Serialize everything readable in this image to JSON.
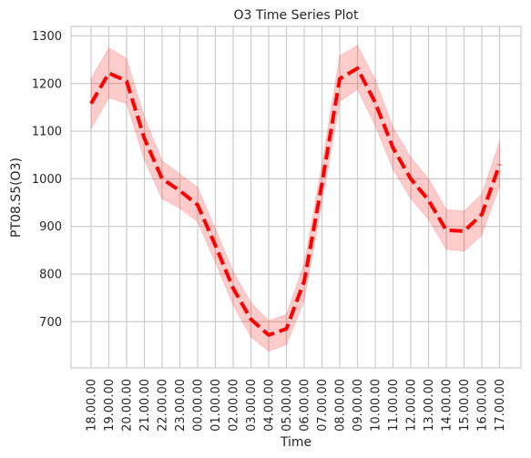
{
  "chart_data": {
    "type": "line",
    "title": "O3 Time Series Plot",
    "xlabel": "Time",
    "ylabel": "PT08.S5(O3)",
    "categories": [
      "18.00.00",
      "19.00.00",
      "20.00.00",
      "21.00.00",
      "22.00.00",
      "23.00.00",
      "00.00.00",
      "01.00.00",
      "02.00.00",
      "03.00.00",
      "04.00.00",
      "05.00.00",
      "06.00.00",
      "07.00.00",
      "08.00.00",
      "09.00.00",
      "10.00.00",
      "11.00.00",
      "12.00.00",
      "13.00.00",
      "14.00.00",
      "15.00.00",
      "16.00.00",
      "17.00.00"
    ],
    "series": [
      {
        "values": [
          1158,
          1222,
          1205,
          1085,
          1000,
          975,
          945,
          860,
          770,
          705,
          672,
          685,
          785,
          990,
          1210,
          1232,
          1160,
          1065,
          1000,
          955,
          892,
          890,
          925,
          1030
        ],
        "ci_lower": [
          1105,
          1170,
          1158,
          1040,
          958,
          938,
          910,
          825,
          735,
          668,
          638,
          652,
          745,
          950,
          1162,
          1188,
          1112,
          1020,
          958,
          915,
          852,
          848,
          882,
          985
        ],
        "ci_upper": [
          1210,
          1275,
          1252,
          1130,
          1038,
          1010,
          982,
          895,
          805,
          740,
          702,
          715,
          822,
          1030,
          1258,
          1280,
          1208,
          1108,
          1045,
          1000,
          935,
          932,
          968,
          1078
        ],
        "color": "#ff0000",
        "band_color": "#ff0000",
        "line_style": "dashed"
      }
    ],
    "yticks": [
      700,
      800,
      900,
      1000,
      1100,
      1200,
      1300
    ],
    "ylim": [
      603,
      1320
    ],
    "grid": true,
    "colors": {
      "grid": "#cccccc",
      "line": "#ff0000",
      "text": "#262626"
    }
  }
}
